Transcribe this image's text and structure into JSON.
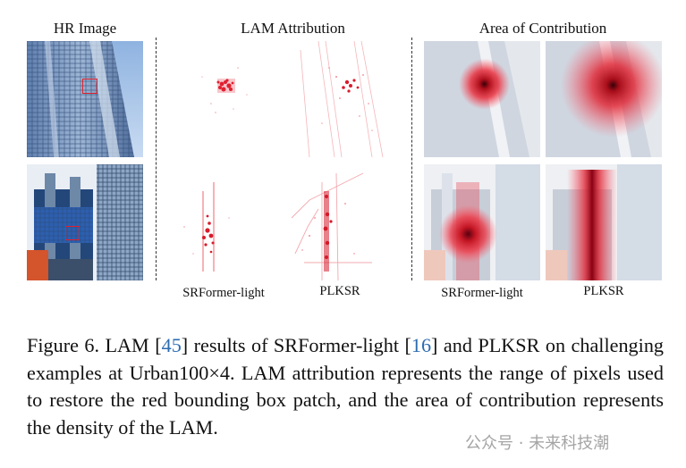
{
  "headers": {
    "hr": "HR Image",
    "lam": "LAM Attribution",
    "area": "Area of Contribution"
  },
  "labels": {
    "lam_left": "SRFormer-light",
    "lam_right": "PLKSR",
    "area_left": "SRFormer-light",
    "area_right": "PLKSR"
  },
  "caption": {
    "p1": "Figure 6. LAM [",
    "r1": "45",
    "p2": "] results of SRFormer-light [",
    "r2": "16",
    "p3": "] and PLKSR on challenging examples at Urban100×4. LAM attribution represents the range of pixels used to restore the red bounding box patch, and the area of contribution represents the density of the LAM."
  },
  "watermark": "公众号 · 未来科技潮",
  "colors": {
    "accent_red": "#e0202a",
    "ref_blue": "#2b6cb0"
  }
}
